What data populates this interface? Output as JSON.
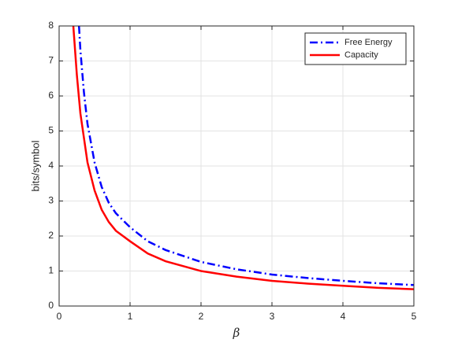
{
  "chart_data": {
    "type": "line",
    "xlabel": "β",
    "ylabel": "bits/symbol",
    "xlim": [
      0,
      5
    ],
    "ylim": [
      0,
      8
    ],
    "xticks": [
      0,
      1,
      2,
      3,
      4,
      5
    ],
    "yticks": [
      0,
      1,
      2,
      3,
      4,
      5,
      6,
      7,
      8
    ],
    "grid": true,
    "legend": "upper right",
    "series": [
      {
        "name": "Free Energy",
        "color": "#0000ff",
        "style": "dashdot",
        "x": [
          0.28,
          0.3,
          0.35,
          0.4,
          0.5,
          0.6,
          0.7,
          0.8,
          1,
          1.25,
          1.5,
          2,
          2.5,
          3,
          3.5,
          4,
          4.5,
          5
        ],
        "values": [
          8,
          7.3,
          6.1,
          5.2,
          4.1,
          3.4,
          2.95,
          2.65,
          2.25,
          1.85,
          1.6,
          1.26,
          1.05,
          0.9,
          0.8,
          0.72,
          0.65,
          0.6
        ]
      },
      {
        "name": "Capacity",
        "color": "#ff0000",
        "style": "solid",
        "x": [
          0.2,
          0.25,
          0.3,
          0.4,
          0.5,
          0.6,
          0.7,
          0.8,
          1,
          1.25,
          1.5,
          2,
          2.5,
          3,
          3.5,
          4,
          4.5,
          5
        ],
        "values": [
          8,
          6.6,
          5.5,
          4.1,
          3.3,
          2.75,
          2.4,
          2.15,
          1.85,
          1.5,
          1.28,
          1.0,
          0.84,
          0.72,
          0.64,
          0.58,
          0.52,
          0.48
        ]
      }
    ]
  }
}
